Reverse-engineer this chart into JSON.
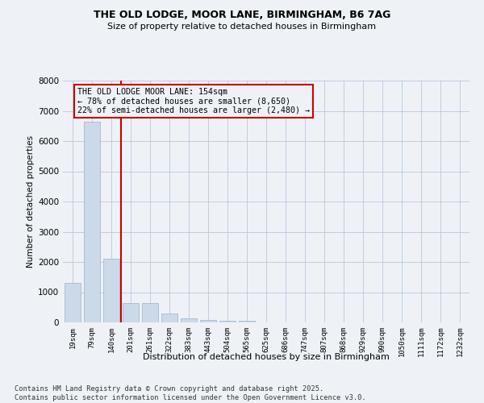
{
  "title_line1": "THE OLD LODGE, MOOR LANE, BIRMINGHAM, B6 7AG",
  "title_line2": "Size of property relative to detached houses in Birmingham",
  "xlabel": "Distribution of detached houses by size in Birmingham",
  "ylabel": "Number of detached properties",
  "bar_color": "#ccd9e8",
  "bar_edge_color": "#9ab0cc",
  "grid_color": "#b8c8dc",
  "vline_color": "#cc0000",
  "vline_position": 2.5,
  "annotation_box_color": "#cc0000",
  "annotation_text": "THE OLD LODGE MOOR LANE: 154sqm\n← 78% of detached houses are smaller (8,650)\n22% of semi-detached houses are larger (2,480) →",
  "categories": [
    "19sqm",
    "79sqm",
    "140sqm",
    "201sqm",
    "261sqm",
    "322sqm",
    "383sqm",
    "443sqm",
    "504sqm",
    "565sqm",
    "625sqm",
    "686sqm",
    "747sqm",
    "807sqm",
    "868sqm",
    "929sqm",
    "990sqm",
    "1050sqm",
    "1111sqm",
    "1172sqm",
    "1232sqm"
  ],
  "values": [
    1300,
    6650,
    2100,
    650,
    650,
    300,
    130,
    80,
    60,
    60,
    0,
    0,
    0,
    0,
    0,
    0,
    0,
    0,
    0,
    0,
    0
  ],
  "ylim": [
    0,
    8000
  ],
  "yticks": [
    0,
    1000,
    2000,
    3000,
    4000,
    5000,
    6000,
    7000,
    8000
  ],
  "footnote": "Contains HM Land Registry data © Crown copyright and database right 2025.\nContains public sector information licensed under the Open Government Licence v3.0.",
  "background_color": "#eef2f7"
}
